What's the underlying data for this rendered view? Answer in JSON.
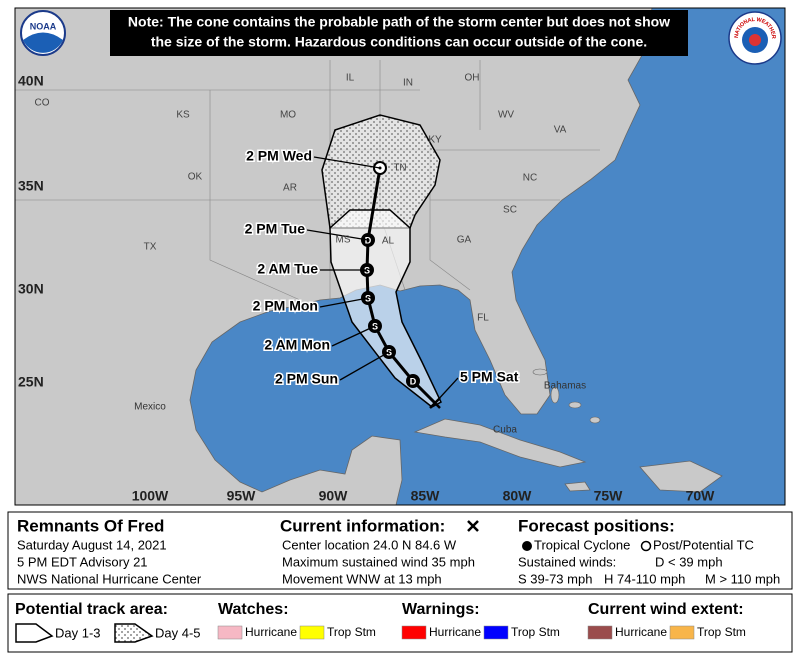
{
  "header": {
    "note": [
      "Note: The cone contains the probable path of the storm center but does not show",
      "the size of the storm. Hazardous conditions can occur outside of the cone."
    ],
    "noaa_logo": "NOAA",
    "nws_logo": "NATIONAL WEATHER SERVICE"
  },
  "map": {
    "lat_labels": [
      "40N",
      "35N",
      "30N",
      "25N"
    ],
    "lon_labels": [
      "100W",
      "95W",
      "90W",
      "85W",
      "80W",
      "75W",
      "70W"
    ],
    "state_labels": [
      "CO",
      "KS",
      "MO",
      "IL",
      "IN",
      "OH",
      "KY",
      "WV",
      "VA",
      "OK",
      "AR",
      "TN",
      "NC",
      "SC",
      "GA",
      "AL",
      "MS",
      "TX",
      "FL"
    ],
    "country_labels": [
      "Mexico",
      "Cuba",
      "Bahamas"
    ],
    "track_labels": [
      "5 PM Sat",
      "2 PM Sun",
      "2 AM Mon",
      "2 PM Mon",
      "2 AM Tue",
      "2 PM Tue",
      "2 PM Wed"
    ],
    "track_markers": [
      "D",
      "S",
      "S",
      "S",
      "S",
      "D"
    ]
  },
  "legend": {
    "storm": {
      "name": "Remnants Of Fred",
      "lines": [
        "Saturday August 14, 2021",
        "5 PM EDT Advisory 21",
        "NWS National Hurricane Center"
      ]
    },
    "current": {
      "title": "Current information:",
      "lines": [
        "Center location 24.0 N 84.6 W",
        "Maximum sustained wind 35 mph",
        "Movement WNW at 13 mph"
      ]
    },
    "forecast": {
      "title": "Forecast positions:",
      "tropical": "Tropical Cyclone",
      "post": "Post/Potential TC",
      "sustained": "Sustained winds:",
      "d": "D < 39 mph",
      "s": "S 39-73 mph",
      "h": "H 74-110 mph",
      "m": "M > 110 mph"
    }
  },
  "bottom": {
    "track_area": {
      "title": "Potential track area:",
      "day13": "Day 1-3",
      "day45": "Day 4-5"
    },
    "watches": {
      "title": "Watches:",
      "items": [
        {
          "label": "Hurricane",
          "color": "#f6b8c4"
        },
        {
          "label": "Trop Stm",
          "color": "#ffff00"
        }
      ]
    },
    "warnings": {
      "title": "Warnings:",
      "items": [
        {
          "label": "Hurricane",
          "color": "#ff0000"
        },
        {
          "label": "Trop Stm",
          "color": "#0000ff"
        }
      ]
    },
    "wind": {
      "title": "Current wind extent:",
      "items": [
        {
          "label": "Hurricane",
          "color": "#9a4c4c"
        },
        {
          "label": "Trop Stm",
          "color": "#f8b54a"
        }
      ]
    }
  }
}
